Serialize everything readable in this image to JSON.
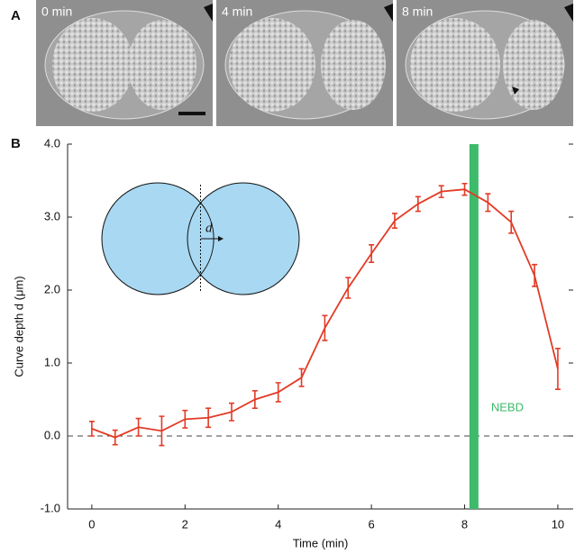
{
  "panel_a": {
    "label": "A",
    "frames": [
      "0 min",
      "4 min",
      "8 min"
    ]
  },
  "chart_data": {
    "type": "line",
    "panel_label": "B",
    "x_label": "Time (min)",
    "y_label": "Curve depth d (μm)",
    "x": [
      0,
      0.5,
      1,
      1.5,
      2,
      2.5,
      3,
      3.5,
      4,
      4.5,
      5,
      5.5,
      6,
      6.5,
      7,
      7.5,
      8,
      8.5,
      9,
      9.5,
      10
    ],
    "series": [
      {
        "color": "#e23b26",
        "values": [
          0.1,
          -0.02,
          0.12,
          0.07,
          0.23,
          0.25,
          0.33,
          0.5,
          0.6,
          0.8,
          1.48,
          2.03,
          2.5,
          2.95,
          3.18,
          3.35,
          3.38,
          3.2,
          2.93,
          2.2,
          0.92
        ],
        "errors": [
          0.1,
          0.1,
          0.12,
          0.2,
          0.12,
          0.13,
          0.12,
          0.12,
          0.13,
          0.12,
          0.17,
          0.14,
          0.12,
          0.1,
          0.1,
          0.08,
          0.08,
          0.12,
          0.15,
          0.15,
          0.28
        ]
      }
    ],
    "xlim": [
      -0.52,
      10.33
    ],
    "ylim": [
      -1,
      4
    ],
    "xticks": [
      0,
      2,
      4,
      6,
      8,
      10
    ],
    "yticks": [
      {
        "value": -1,
        "label": "-1.0"
      },
      {
        "value": 0,
        "label": "0.0"
      },
      {
        "value": 1,
        "label": "1.0"
      },
      {
        "value": 2,
        "label": "2.0"
      },
      {
        "value": 3,
        "label": "3.0"
      },
      {
        "value": 4,
        "label": "4.0"
      }
    ],
    "reference_line": 0,
    "event": {
      "x": 8.2,
      "label": "NEBD",
      "color": "#3dba6a"
    },
    "inset_label": "d"
  }
}
